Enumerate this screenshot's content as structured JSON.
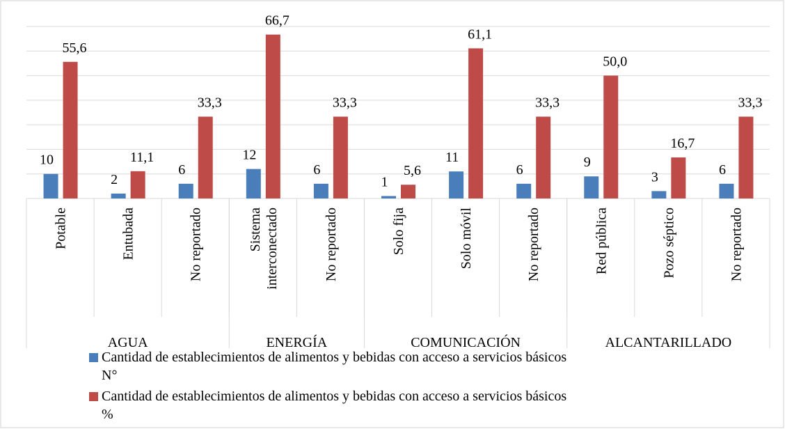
{
  "chart_data": {
    "type": "bar",
    "categories": [
      "Potable",
      "Entubada",
      "No reportado",
      "Sistema interconectado",
      "No reportado",
      "Solo fija",
      "Solo móvil",
      "No reportado",
      "Red pública",
      "Pozo séptico",
      "No reportado"
    ],
    "groups": [
      {
        "name": "AGUA",
        "count": 3
      },
      {
        "name": "ENERGÍA",
        "count": 2
      },
      {
        "name": "COMUNICACIÓN",
        "count": 3
      },
      {
        "name": "ALCANTARILLADO",
        "count": 3
      }
    ],
    "series": [
      {
        "name": "Cantidad de establecimientos de alimentos y bebidas con acceso a servicios básicos N°",
        "color": "#4a7ebb",
        "values": [
          10,
          2,
          6,
          12,
          6,
          1,
          11,
          6,
          9,
          3,
          6
        ]
      },
      {
        "name": "Cantidad de establecimientos de alimentos y bebidas con acceso a servicios básicos %",
        "color": "#be4b48",
        "values": [
          55.6,
          11.1,
          33.3,
          66.7,
          33.3,
          5.6,
          61.1,
          33.3,
          50.0,
          16.7,
          33.3
        ],
        "value_labels": [
          "55,6",
          "11,1",
          "33,3",
          "66,7",
          "33,3",
          "5,6",
          "61,1",
          "33,3",
          "50,0",
          "16,7",
          "33,3"
        ]
      }
    ],
    "ylim": [
      0,
      70
    ],
    "yticks": [
      0,
      10,
      20,
      30,
      40,
      50,
      60,
      70
    ],
    "grid": true
  }
}
